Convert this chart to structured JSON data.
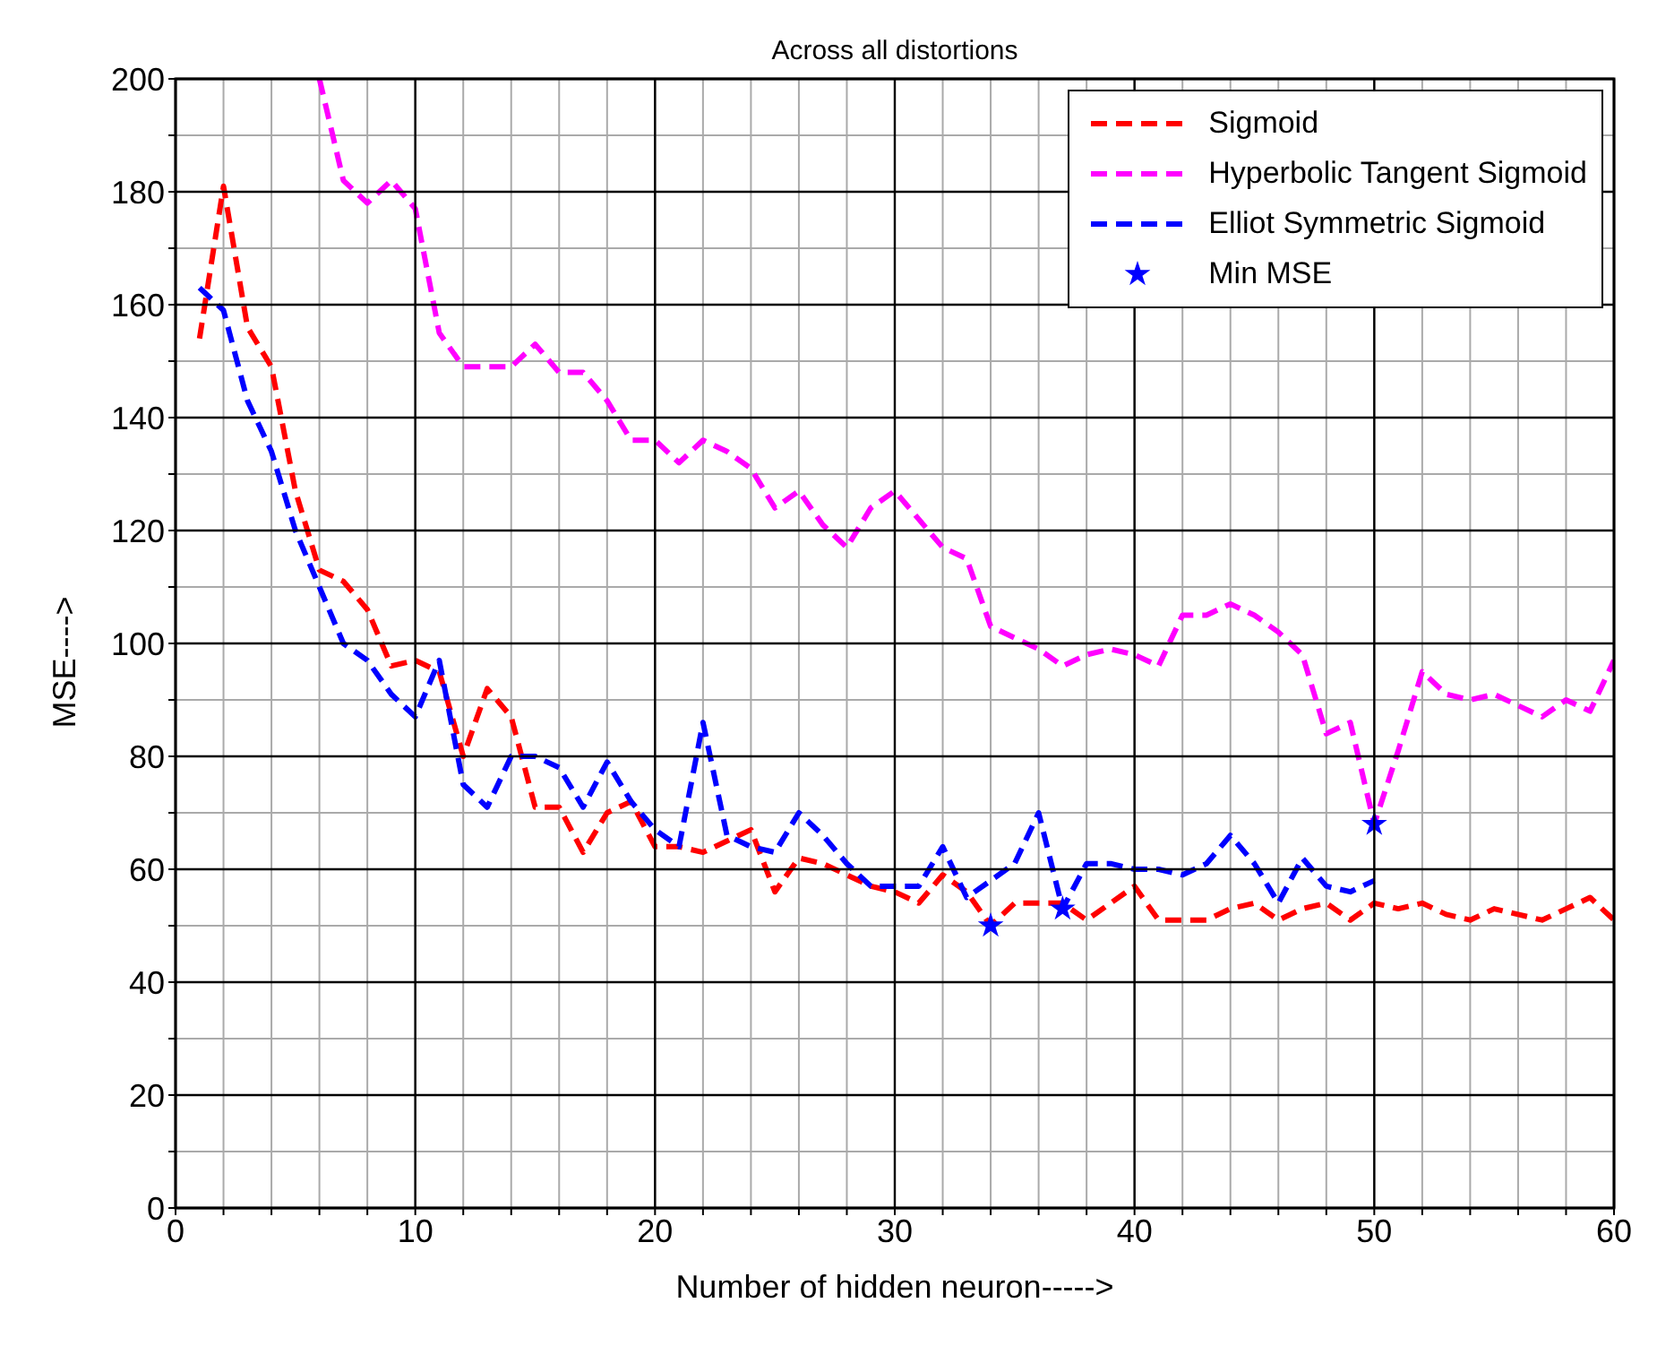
{
  "chart_data": {
    "type": "line",
    "title": "Across all distortions",
    "xlabel": "Number of hidden neuron----->",
    "ylabel": "MSE---->",
    "x": [
      1,
      2,
      3,
      4,
      5,
      6,
      7,
      8,
      9,
      10,
      11,
      12,
      13,
      14,
      15,
      16,
      17,
      18,
      19,
      20,
      21,
      22,
      23,
      24,
      25,
      26,
      27,
      28,
      29,
      30,
      31,
      32,
      33,
      34,
      35,
      36,
      37,
      38,
      39,
      40,
      41,
      42,
      43,
      44,
      45,
      46,
      47,
      48,
      49,
      50,
      51,
      52,
      53,
      54,
      55,
      56,
      57,
      58,
      59,
      60
    ],
    "series": [
      {
        "name": "Sigmoid",
        "color": "#ff0000",
        "values": [
          154,
          181,
          156,
          149,
          127,
          113,
          111,
          106,
          96,
          97,
          95,
          80,
          92,
          87,
          71,
          71,
          63,
          70,
          72,
          64,
          64,
          63,
          65,
          67,
          56,
          62,
          61,
          59,
          57,
          56,
          54,
          59,
          56,
          50,
          54,
          54,
          54,
          51,
          54,
          57,
          51,
          51,
          51,
          53,
          54,
          51,
          53,
          54,
          51,
          54,
          53,
          54,
          52,
          51,
          53,
          52,
          51,
          53,
          55,
          51
        ]
      },
      {
        "name": "Hyperbolic Tangent Sigmoid",
        "color": "#ff00ff",
        "values": [
          null,
          null,
          null,
          null,
          null,
          200,
          182,
          178,
          182,
          177,
          155,
          149,
          149,
          149,
          153,
          148,
          148,
          143,
          136,
          136,
          132,
          136,
          134,
          131,
          124,
          127,
          121,
          117,
          124,
          127,
          122,
          117,
          115,
          103,
          101,
          99,
          96,
          98,
          99,
          98,
          96,
          105,
          105,
          107,
          105,
          102,
          98,
          84,
          86,
          68,
          81,
          95,
          91,
          90,
          91,
          89,
          87,
          90,
          88,
          97
        ]
      },
      {
        "name": "Elliot Symmetric Sigmoid",
        "color": "#0000ff",
        "x": [
          1,
          2,
          3,
          4,
          5,
          6,
          7,
          8,
          9,
          10,
          11,
          12,
          13,
          14,
          15,
          16,
          17,
          18,
          19,
          20,
          21,
          22,
          23,
          24,
          25,
          26,
          27,
          28,
          29,
          30,
          31,
          32,
          33,
          34,
          35,
          36,
          37,
          38,
          39,
          40,
          41,
          42,
          43,
          44,
          45,
          46,
          47,
          48,
          49,
          50
        ],
        "values": [
          163,
          159,
          143,
          134,
          120,
          110,
          100,
          97,
          91,
          87,
          97,
          75,
          71,
          80,
          80,
          78,
          71,
          79,
          72,
          67,
          64,
          86,
          66,
          64,
          63,
          70,
          66,
          61,
          57,
          57,
          57,
          64,
          55,
          58,
          61,
          70,
          53,
          61,
          61,
          60,
          60,
          59,
          61,
          66,
          61,
          54,
          62,
          57,
          56,
          58
        ]
      },
      {
        "name": "Min MSE",
        "type": "scatter",
        "marker": "star",
        "color": "#0000ff",
        "x": [
          34,
          37,
          50
        ],
        "values": [
          50,
          53,
          68
        ]
      }
    ],
    "xlim": [
      0,
      60
    ],
    "xticks": [
      0,
      {
        "value": 2,
        "label": null
      },
      {
        "value": 4,
        "label": null
      },
      {
        "value": 6,
        "label": null
      },
      {
        "value": 8,
        "label": null
      },
      10,
      {
        "value": 12,
        "label": null
      },
      {
        "value": 14,
        "label": null
      },
      {
        "value": 16,
        "label": null
      },
      {
        "value": 18,
        "label": null
      },
      20,
      {
        "value": 22,
        "label": null
      },
      {
        "value": 24,
        "label": null
      },
      {
        "value": 26,
        "label": null
      },
      {
        "value": 28,
        "label": null
      },
      30,
      {
        "value": 32,
        "label": null
      },
      {
        "value": 34,
        "label": null
      },
      {
        "value": 36,
        "label": null
      },
      {
        "value": 38,
        "label": null
      },
      40,
      {
        "value": 42,
        "label": null
      },
      {
        "value": 44,
        "label": null
      },
      {
        "value": 46,
        "label": null
      },
      {
        "value": 48,
        "label": null
      },
      50,
      {
        "value": 52,
        "label": null
      },
      {
        "value": 54,
        "label": null
      },
      {
        "value": 56,
        "label": null
      },
      {
        "value": 58,
        "label": null
      },
      60
    ],
    "ylim": [
      0,
      200
    ],
    "yticks": [
      0,
      {
        "value": 10,
        "label": null
      },
      20,
      {
        "value": 30,
        "label": null
      },
      40,
      {
        "value": 50,
        "label": null
      },
      60,
      {
        "value": 70,
        "label": null
      },
      80,
      {
        "value": 90,
        "label": null
      },
      100,
      {
        "value": 110,
        "label": null
      },
      120,
      {
        "value": 130,
        "label": null
      },
      140,
      {
        "value": 150,
        "label": null
      },
      160,
      {
        "value": 170,
        "label": null
      },
      180,
      {
        "value": 190,
        "label": null
      },
      200
    ],
    "grid": true,
    "legend": "top right",
    "line_style": "dashed"
  }
}
